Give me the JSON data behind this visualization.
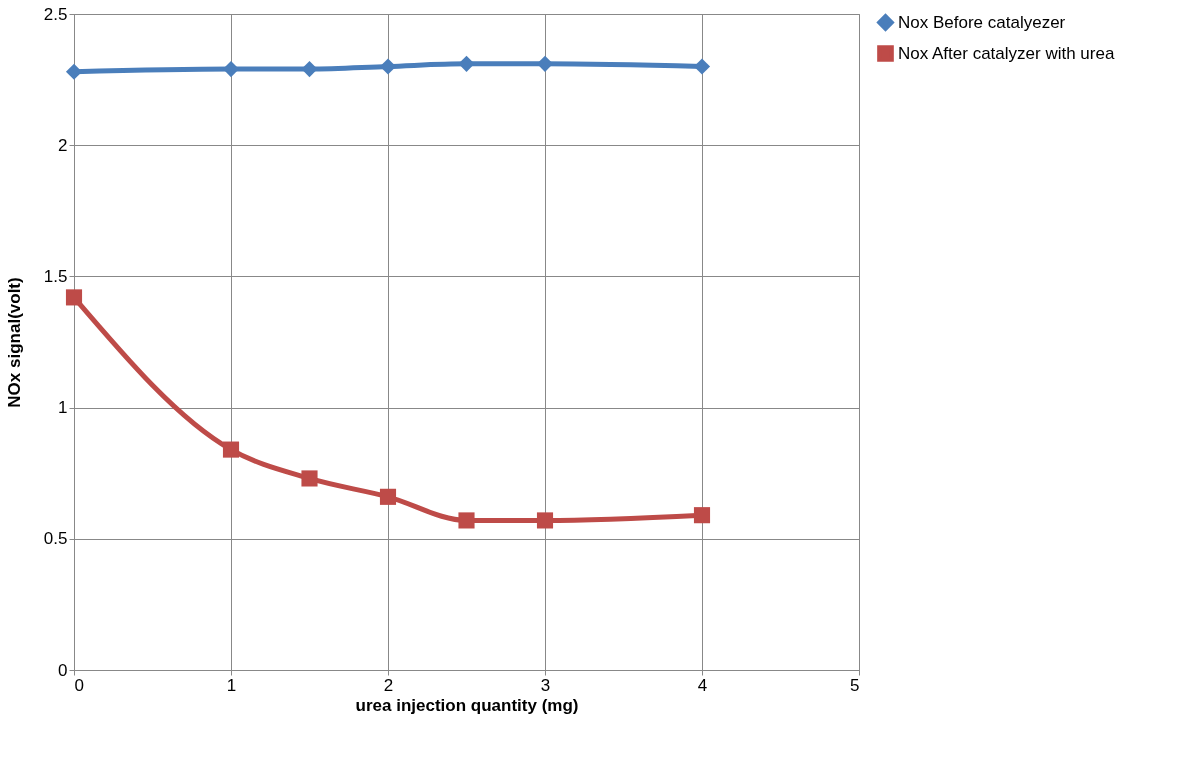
{
  "chart_data": {
    "type": "line",
    "xlabel": "urea injection quantity (mg)",
    "ylabel": "NOx signal(volt)",
    "xlim": [
      0,
      5
    ],
    "xticks": [
      0,
      1,
      2,
      3,
      4,
      5
    ],
    "ylim": [
      0,
      2.5
    ],
    "yticks": [
      0,
      0.5,
      1,
      1.5,
      2,
      2.5
    ],
    "grid": true,
    "legend": "right",
    "line_style": "solid",
    "x": [
      0,
      1,
      1.5,
      2,
      2.5,
      3,
      4
    ],
    "series": [
      {
        "name": "Nox Before catalyezer",
        "color": "#4a7ebb",
        "marker": "diamond",
        "values": [
          2.28,
          2.29,
          2.29,
          2.3,
          2.31,
          2.31,
          2.3
        ]
      },
      {
        "name": "Nox After catalyzer with urea",
        "color": "#be4b48",
        "marker": "square",
        "values": [
          1.42,
          0.84,
          0.73,
          0.66,
          0.57,
          0.57,
          0.59
        ]
      }
    ]
  }
}
